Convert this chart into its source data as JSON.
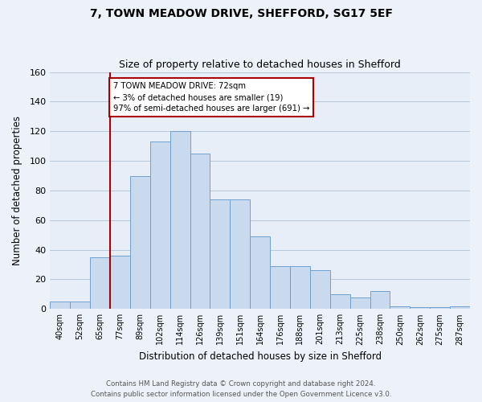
{
  "title": "7, TOWN MEADOW DRIVE, SHEFFORD, SG17 5EF",
  "subtitle": "Size of property relative to detached houses in Shefford",
  "xlabel": "Distribution of detached houses by size in Shefford",
  "ylabel": "Number of detached properties",
  "bar_labels": [
    "40sqm",
    "52sqm",
    "65sqm",
    "77sqm",
    "89sqm",
    "102sqm",
    "114sqm",
    "126sqm",
    "139sqm",
    "151sqm",
    "164sqm",
    "176sqm",
    "188sqm",
    "201sqm",
    "213sqm",
    "225sqm",
    "238sqm",
    "250sqm",
    "262sqm",
    "275sqm",
    "287sqm"
  ],
  "bar_values": [
    5,
    5,
    35,
    36,
    90,
    113,
    120,
    105,
    74,
    74,
    49,
    29,
    29,
    26,
    10,
    8,
    12,
    2,
    1,
    1,
    2
  ],
  "bar_color": "#c9d9ee",
  "bar_edge_color": "#6fa0cc",
  "ylim": [
    0,
    160
  ],
  "yticks": [
    0,
    20,
    40,
    60,
    80,
    100,
    120,
    140,
    160
  ],
  "marker_label": "7 TOWN MEADOW DRIVE: 72sqm",
  "annotation_line1": "← 3% of detached houses are smaller (19)",
  "annotation_line2": "97% of semi-detached houses are larger (691) →",
  "marker_color": "#aa0000",
  "footer_line1": "Contains HM Land Registry data © Crown copyright and database right 2024.",
  "footer_line2": "Contains public sector information licensed under the Open Government Licence v3.0.",
  "background_color": "#edf2fa",
  "plot_bg_color": "#e8eef8",
  "grid_color": "#b8c8dc"
}
